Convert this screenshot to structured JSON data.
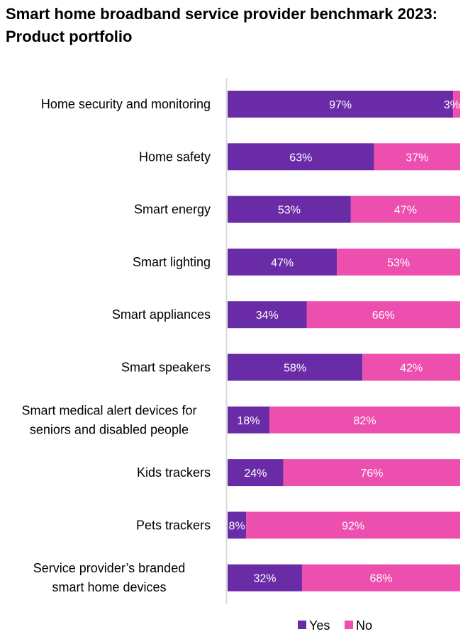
{
  "chart_data": {
    "type": "bar",
    "orientation": "horizontal",
    "stacked": true,
    "percent": true,
    "title": "Smart home broadband service provider benchmark 2023: Product portfolio",
    "categories": [
      [
        "Home security and monitoring"
      ],
      [
        "Home safety"
      ],
      [
        "Smart energy"
      ],
      [
        "Smart lighting"
      ],
      [
        "Smart appliances"
      ],
      [
        "Smart speakers"
      ],
      [
        "Smart medical alert devices for",
        "seniors and disabled people"
      ],
      [
        "Kids trackers"
      ],
      [
        "Pets trackers"
      ],
      [
        "Service provider’s branded",
        "smart home devices"
      ]
    ],
    "series": [
      {
        "name": "Yes",
        "color": "#6a2ba6",
        "values": [
          97,
          63,
          53,
          47,
          34,
          58,
          18,
          24,
          8,
          32
        ]
      },
      {
        "name": "No",
        "color": "#ec4fae",
        "values": [
          3,
          37,
          47,
          53,
          66,
          42,
          82,
          76,
          92,
          68
        ]
      }
    ],
    "xlim": [
      0,
      100
    ],
    "xlabel": "",
    "ylabel": "",
    "grid": false,
    "legend": "bottom-center",
    "value_suffix": "%"
  }
}
